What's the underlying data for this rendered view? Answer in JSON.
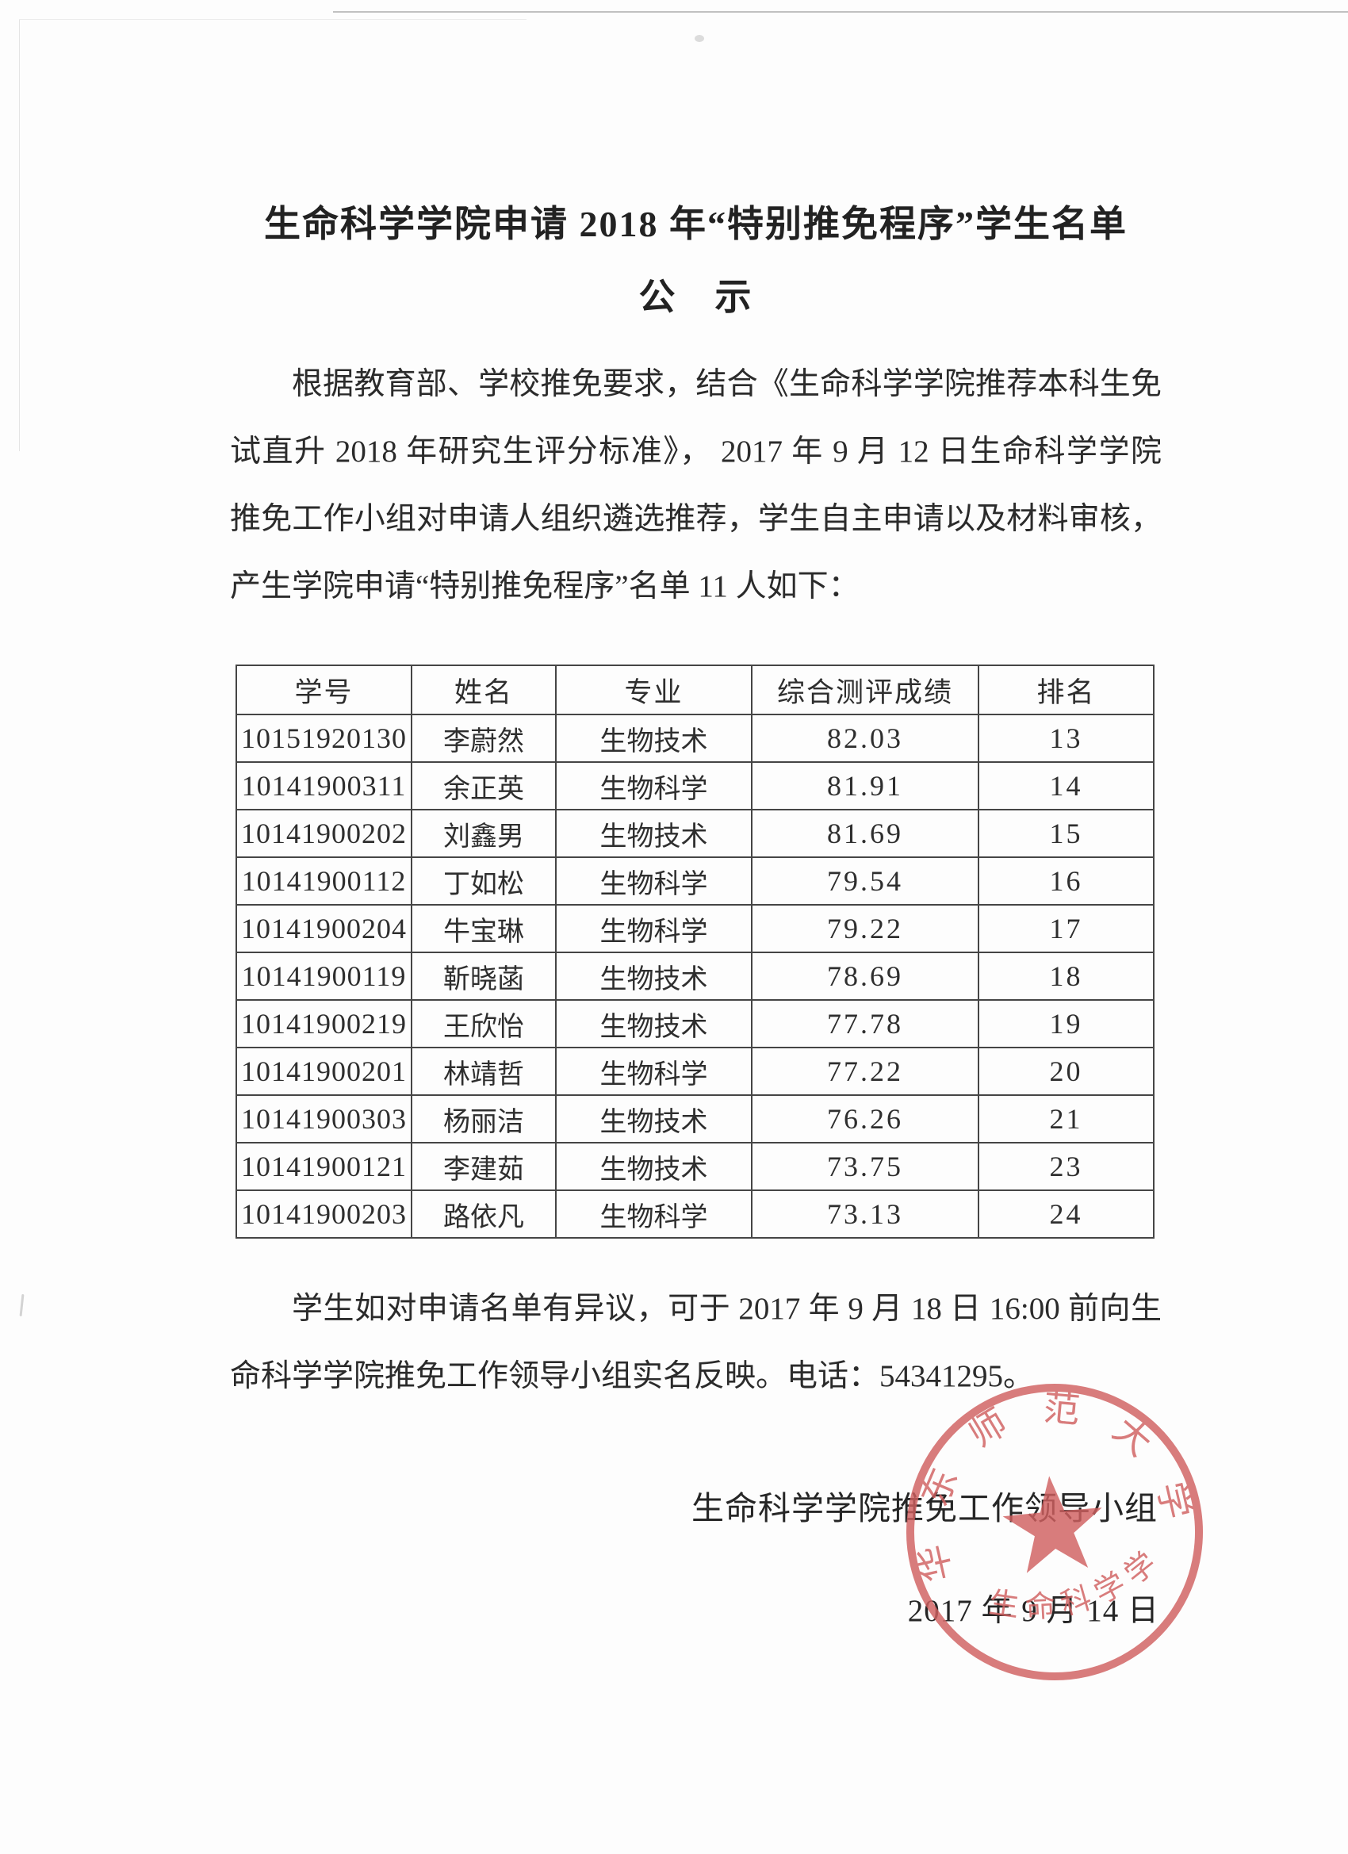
{
  "document": {
    "title": "生命科学学院申请 2018 年“特别推免程序”学生名单",
    "subtitle": "公　示",
    "intro_lines": [
      "根据教育部、学校推免要求，结合《生命科学学院推荐本科生免",
      "试直升 2018 年研究生评分标准》， 2017 年 9 月 12 日生命科学学院",
      "推免工作小组对申请人组织遴选推荐，学生自主申请以及材料审核，",
      "产生学院申请“特别推免程序”名单 11 人如下："
    ],
    "table": {
      "headers": [
        "学号",
        "姓名",
        "专业",
        "综合测评成绩",
        "排名"
      ],
      "rows": [
        [
          "10151920130",
          "李蔚然",
          "生物技术",
          "82.03",
          "13"
        ],
        [
          "10141900311",
          "余正英",
          "生物科学",
          "81.91",
          "14"
        ],
        [
          "10141900202",
          "刘鑫男",
          "生物技术",
          "81.69",
          "15"
        ],
        [
          "10141900112",
          "丁如松",
          "生物科学",
          "79.54",
          "16"
        ],
        [
          "10141900204",
          "牛宝琳",
          "生物科学",
          "79.22",
          "17"
        ],
        [
          "10141900119",
          "靳晓菡",
          "生物技术",
          "78.69",
          "18"
        ],
        [
          "10141900219",
          "王欣怡",
          "生物技术",
          "77.78",
          "19"
        ],
        [
          "10141900201",
          "林靖哲",
          "生物科学",
          "77.22",
          "20"
        ],
        [
          "10141900303",
          "杨丽洁",
          "生物技术",
          "76.26",
          "21"
        ],
        [
          "10141900121",
          "李建茹",
          "生物技术",
          "73.75",
          "23"
        ],
        [
          "10141900203",
          "路依凡",
          "生物科学",
          "73.13",
          "24"
        ]
      ]
    },
    "notice_lines": [
      "学生如对申请名单有异议，可于 2017 年 9 月 18 日 16:00 前向生",
      "命科学学院推免工作领导小组实名反映。电话：54341295。"
    ],
    "signature": "生命科学学院推免工作领导小组",
    "date": "2017 年 9 月 14 日",
    "stamp": {
      "top_text": "华东师范大学",
      "bottom_text": "生命科学学院",
      "color": "#d06060"
    }
  }
}
